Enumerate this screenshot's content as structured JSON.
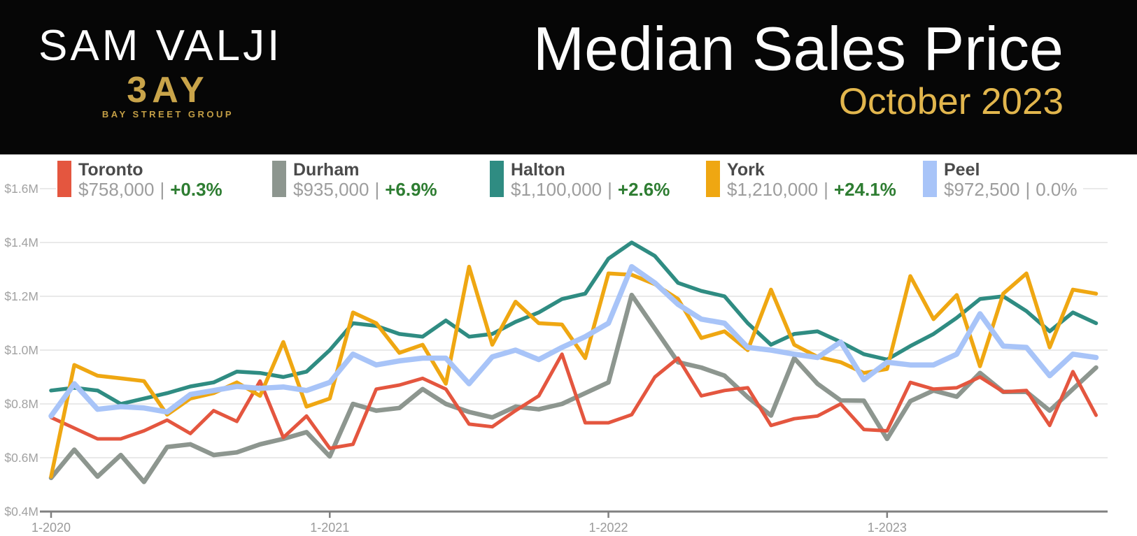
{
  "header": {
    "agent_name": "SAM VALJI",
    "logo_text": "3AY",
    "logo_subtext": "BAY STREET GROUP",
    "title": "Median Sales Price",
    "subtitle": "October 2023",
    "accent_color": "#e2b64d"
  },
  "legend": {
    "separator": "|",
    "items": [
      {
        "name": "Toronto",
        "value": "$758,000",
        "change": "+0.3%",
        "color": "#e4563f",
        "change_color": "#2e7d32",
        "change_bold": true
      },
      {
        "name": "Durham",
        "value": "$935,000",
        "change": "+6.9%",
        "color": "#8d968f",
        "change_color": "#2e7d32",
        "change_bold": true
      },
      {
        "name": "Halton",
        "value": "$1,100,000",
        "change": "+2.6%",
        "color": "#2f8c82",
        "change_color": "#2e7d32",
        "change_bold": true
      },
      {
        "name": "York",
        "value": "$1,210,000",
        "change": "+24.1%",
        "color": "#efa712",
        "change_color": "#2e7d32",
        "change_bold": true
      },
      {
        "name": "Peel",
        "value": "$972,500",
        "change": "0.0%",
        "color": "#a8c4f8",
        "change_color": "#9d9d9d",
        "change_bold": false
      }
    ]
  },
  "chart_data": {
    "type": "line",
    "title": "Median Sales Price",
    "x_start": "1-2020",
    "x_end": "10-2023",
    "months": 46,
    "ylim": [
      0.4,
      1.6
    ],
    "y_unit": "$M",
    "grid": true,
    "legend_position": "top",
    "y_ticks": [
      {
        "label": "$1.6M",
        "value": 1.6
      },
      {
        "label": "$1.4M",
        "value": 1.4
      },
      {
        "label": "$1.2M",
        "value": 1.2
      },
      {
        "label": "$1.0M",
        "value": 1.0
      },
      {
        "label": "$0.8M",
        "value": 0.8
      },
      {
        "label": "$0.6M",
        "value": 0.6
      },
      {
        "label": "$0.4M",
        "value": 0.4
      }
    ],
    "x_ticks": [
      {
        "label": "1-2020",
        "month_index": 0
      },
      {
        "label": "1-2021",
        "month_index": 12
      },
      {
        "label": "1-2022",
        "month_index": 24
      },
      {
        "label": "1-2023",
        "month_index": 36
      }
    ],
    "series": [
      {
        "name": "Toronto",
        "color": "#e4563f",
        "values": [
          0.75,
          0.71,
          0.67,
          0.67,
          0.7,
          0.74,
          0.69,
          0.775,
          0.735,
          0.885,
          0.675,
          0.755,
          0.635,
          0.65,
          0.855,
          0.87,
          0.895,
          0.855,
          0.725,
          0.715,
          0.775,
          0.83,
          0.985,
          0.73,
          0.73,
          0.76,
          0.9,
          0.97,
          0.83,
          0.85,
          0.86,
          0.72,
          0.745,
          0.755,
          0.8,
          0.705,
          0.7,
          0.88,
          0.855,
          0.86,
          0.9,
          0.845,
          0.85,
          0.72,
          0.92,
          0.758
        ]
      },
      {
        "name": "Durham",
        "color": "#8d968f",
        "values": [
          0.525,
          0.63,
          0.53,
          0.61,
          0.51,
          0.64,
          0.65,
          0.61,
          0.62,
          0.65,
          0.67,
          0.695,
          0.605,
          0.8,
          0.775,
          0.785,
          0.855,
          0.8,
          0.77,
          0.75,
          0.79,
          0.78,
          0.8,
          0.84,
          0.88,
          1.205,
          1.08,
          0.955,
          0.935,
          0.905,
          0.825,
          0.757,
          0.97,
          0.875,
          0.813,
          0.812,
          0.67,
          0.81,
          0.85,
          0.827,
          0.915,
          0.845,
          0.845,
          0.775,
          0.855,
          0.935
        ]
      },
      {
        "name": "Halton",
        "color": "#2f8c82",
        "values": [
          0.85,
          0.86,
          0.85,
          0.8,
          0.82,
          0.84,
          0.865,
          0.88,
          0.92,
          0.915,
          0.9,
          0.92,
          1.0,
          1.1,
          1.09,
          1.06,
          1.05,
          1.11,
          1.05,
          1.06,
          1.105,
          1.14,
          1.19,
          1.21,
          1.34,
          1.4,
          1.35,
          1.25,
          1.22,
          1.2,
          1.1,
          1.02,
          1.06,
          1.07,
          1.03,
          0.985,
          0.965,
          1.015,
          1.06,
          1.12,
          1.19,
          1.2,
          1.145,
          1.07,
          1.14,
          1.1
        ]
      },
      {
        "name": "York",
        "color": "#efa712",
        "values": [
          0.53,
          0.945,
          0.905,
          0.895,
          0.885,
          0.76,
          0.82,
          0.84,
          0.88,
          0.83,
          1.03,
          0.79,
          0.82,
          1.14,
          1.1,
          0.99,
          1.02,
          0.875,
          1.31,
          1.02,
          1.18,
          1.1,
          1.095,
          0.97,
          1.285,
          1.28,
          1.245,
          1.19,
          1.045,
          1.07,
          1.0,
          1.225,
          1.02,
          0.975,
          0.955,
          0.915,
          0.93,
          1.275,
          1.115,
          1.205,
          0.94,
          1.21,
          1.285,
          1.01,
          1.225,
          1.21
        ]
      },
      {
        "name": "Peel",
        "color": "#a8c4f8",
        "values": [
          0.755,
          0.875,
          0.78,
          0.79,
          0.785,
          0.77,
          0.835,
          0.85,
          0.865,
          0.858,
          0.863,
          0.85,
          0.88,
          0.985,
          0.945,
          0.96,
          0.97,
          0.97,
          0.875,
          0.975,
          1.0,
          0.965,
          1.01,
          1.05,
          1.1,
          1.31,
          1.25,
          1.17,
          1.115,
          1.1,
          1.01,
          1.0,
          0.985,
          0.9725,
          1.03,
          0.89,
          0.955,
          0.945,
          0.945,
          0.985,
          1.135,
          1.015,
          1.01,
          0.905,
          0.985,
          0.9725
        ]
      }
    ]
  }
}
